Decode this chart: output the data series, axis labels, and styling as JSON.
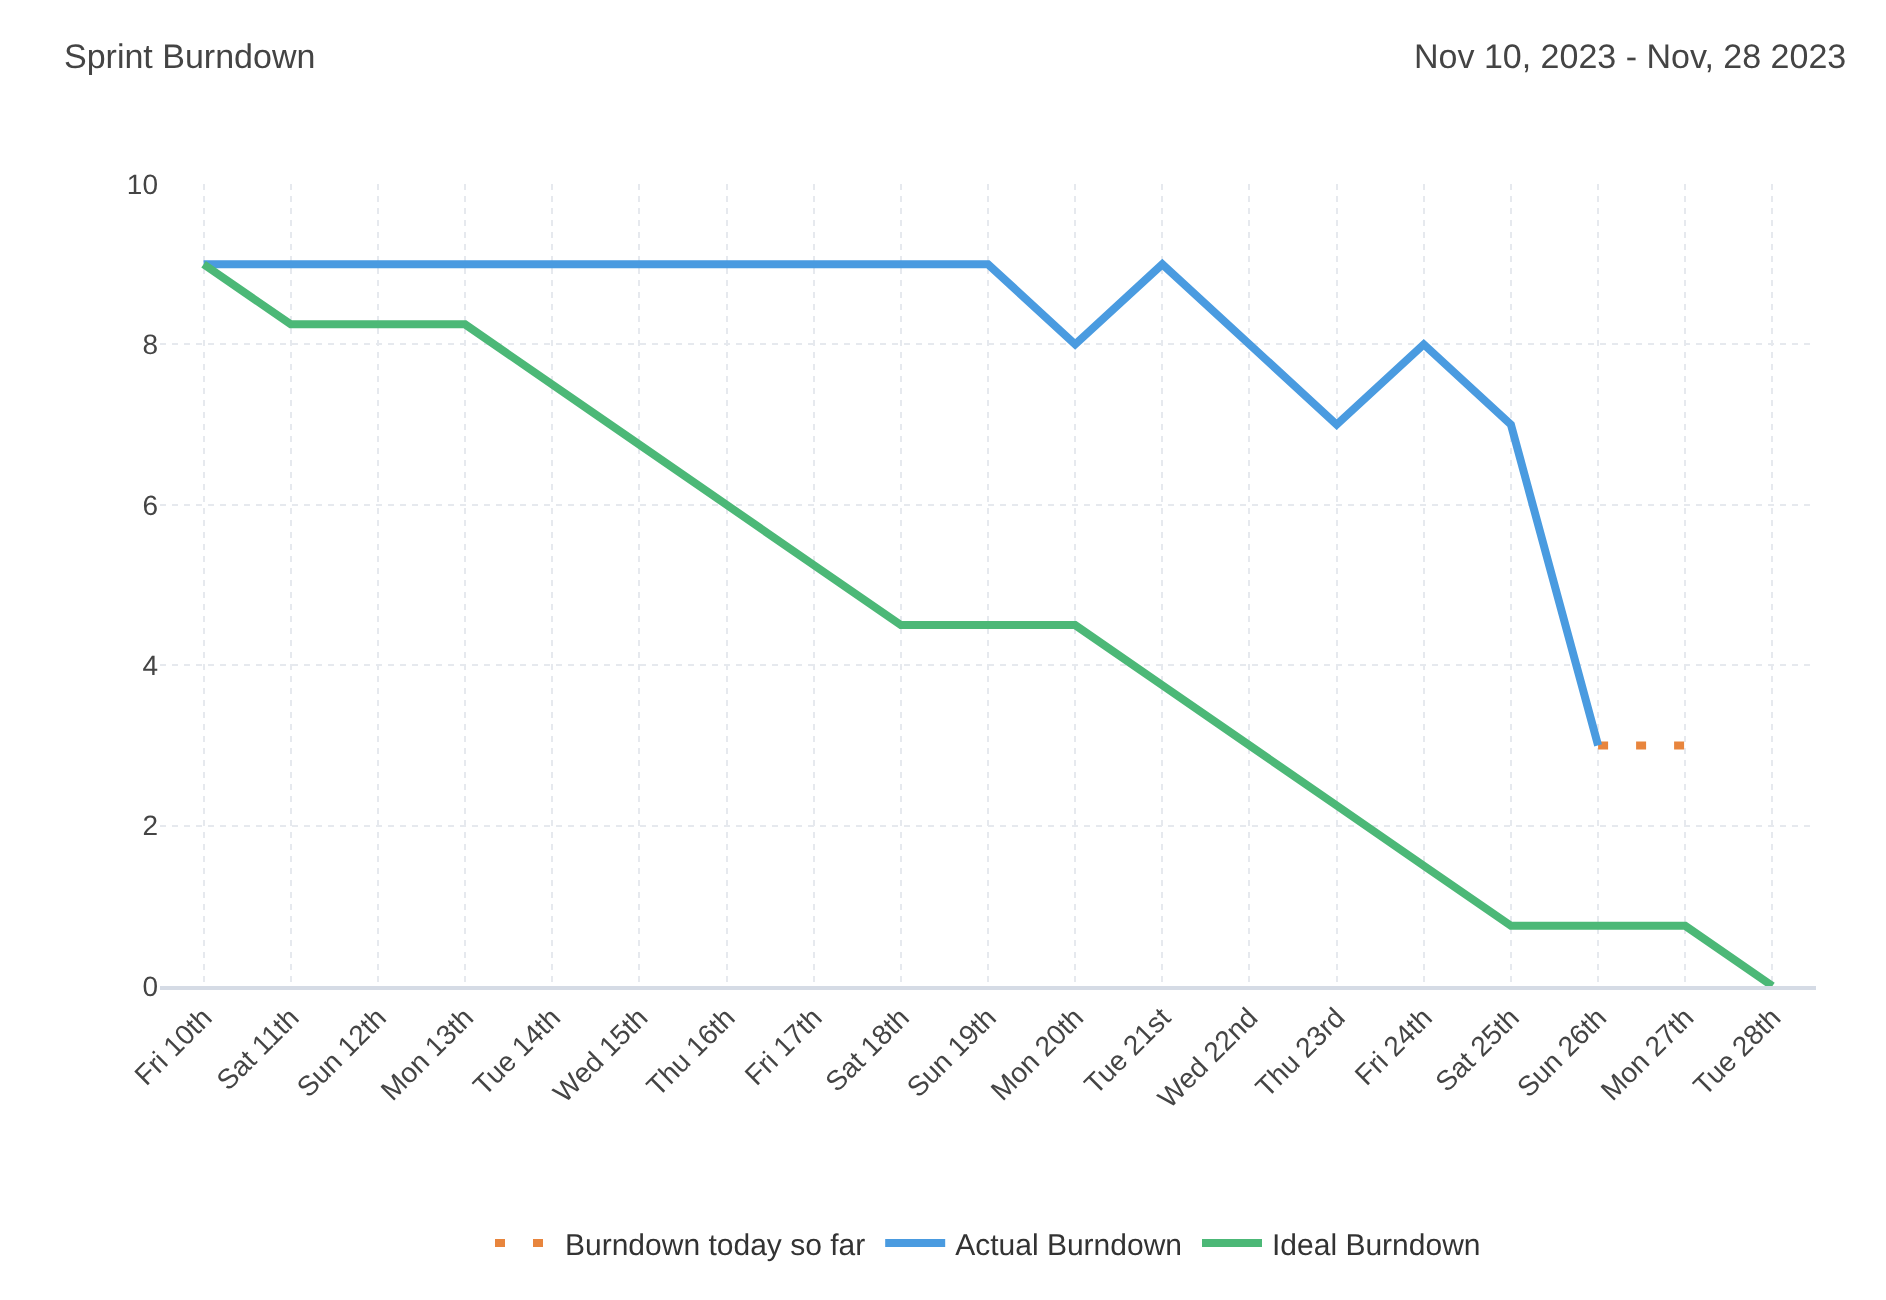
{
  "chart_data": {
    "type": "line",
    "title": "Sprint Burndown",
    "subtitle": "Nov 10, 2023 - Nov, 28 2023",
    "categories": [
      "Fri 10th",
      "Sat 11th",
      "Sun 12th",
      "Mon 13th",
      "Tue 14th",
      "Wed 15th",
      "Thu 16th",
      "Fri 17th",
      "Sat 18th",
      "Sun 19th",
      "Mon 20th",
      "Tue 21st",
      "Wed 22nd",
      "Thu 23rd",
      "Fri 24th",
      "Sat 25th",
      "Sun 26th",
      "Mon 27th",
      "Tue 28th"
    ],
    "series": [
      {
        "name": "Burndown today so far",
        "color": "#e8853d",
        "line_style": "dotted",
        "values": [
          null,
          null,
          null,
          null,
          null,
          null,
          null,
          null,
          null,
          null,
          null,
          null,
          null,
          null,
          null,
          null,
          3,
          3,
          null
        ]
      },
      {
        "name": "Actual Burndown",
        "color": "#4a9be0",
        "line_style": "solid",
        "values": [
          9,
          9,
          9,
          9,
          9,
          9,
          9,
          9,
          9,
          9,
          8,
          9,
          8,
          7,
          8,
          7,
          3,
          null,
          null
        ]
      },
      {
        "name": "Ideal Burndown",
        "color": "#4cb877",
        "line_style": "solid",
        "values": [
          9,
          8.25,
          8.25,
          8.25,
          7.5,
          6.75,
          6,
          5.25,
          4.5,
          4.5,
          4.5,
          3.75,
          3,
          2.25,
          1.5,
          0.75,
          0.75,
          0.75,
          0
        ]
      }
    ],
    "ylim": [
      0,
      10
    ],
    "yticks": [
      0,
      2,
      4,
      6,
      8,
      10
    ],
    "grid": true,
    "legend": "bottom",
    "marker": "none"
  }
}
